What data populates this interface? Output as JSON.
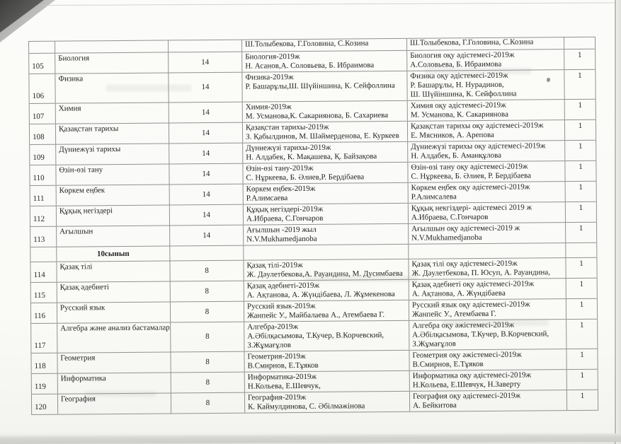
{
  "document": {
    "section_label": "10сынып",
    "table": {
      "rows": [
        {
          "type": "carry",
          "textbook": [
            "Ш.Толыбекова, Г.Головина, С.Козина"
          ],
          "method": [
            "Ш.Толыбекова, Г.Головина, С.Козина"
          ],
          "copies": ""
        },
        {
          "type": "data",
          "num": "105",
          "subject": "Биология",
          "hours": "14",
          "textbook": [
            "Биология-2019ж",
            "Н. Асанов,А. Соловьева, Б. Ибраимова"
          ],
          "method": [
            "Биология оқу әдістемесі-2019ж",
            "А.Соловьева, Б. Ибраимова"
          ],
          "copies": "1"
        },
        {
          "type": "data",
          "num": "106",
          "subject": "Физика",
          "hours": "14",
          "textbook": [
            "Физика-2019ж",
            "Р. Башарұлы,Ш. Шүйіншина, К. Сейфоллина"
          ],
          "method": [
            "Физика оқу әдістемесі-2019ж",
            "Р. Башарұлы, Н. Нурадинов,",
            "Ш. Шүйіншина, К. Сейфоллина"
          ],
          "copies": "1"
        },
        {
          "type": "data",
          "num": "107",
          "subject": "Химия",
          "hours": "14",
          "textbook": [
            "Химия-2019ж",
            "М. Усманова,К. Сакариянова, Б. Сахариева"
          ],
          "method": [
            "Химия оқу әдістемесі-2019ж",
            "М. Усманова, К. Сакариянова"
          ],
          "copies": "1"
        },
        {
          "type": "data",
          "num": "108",
          "subject": "Қазақстан тарихы",
          "hours": "14",
          "textbook": [
            "Қазақстан тарихы-2019ж",
            "З. Қабылдинов, М. Шәймерденова, Е. Куркеев"
          ],
          "method": [
            "Қазақстан тарихы оқу әдістемесі-2019ж",
            "Е. Мясников, А. Арепова"
          ],
          "copies": "1"
        },
        {
          "type": "data",
          "num": "109",
          "subject": "Дүниежүзі тарихы",
          "hours": "14",
          "textbook": [
            "Дүниежүзі тарихы-2019ж",
            "Н. Алдабек, К. Мақашева, Қ. Байзақова"
          ],
          "method": [
            "Дүниежүзі тарихы оқу әдістемесі-2019ж",
            "Н. Алдабек, Б. Аманқұлова"
          ],
          "copies": "1"
        },
        {
          "type": "data",
          "num": "110",
          "subject": "Өзін-өзі тану",
          "hours": "14",
          "textbook": [
            "Өзін-өзі тану-2019ж",
            "С. Нұркеева, Б. Әлиев,Р. Бердібаева"
          ],
          "method": [
            "Өзін-өзі тану оқу әдістемесі-2019ж",
            "С. Нұркеева, Б. Әлиев, Р. Бердібаева"
          ],
          "copies": "1"
        },
        {
          "type": "data",
          "num": "111",
          "subject": "Көркем еңбек",
          "hours": "14",
          "textbook": [
            "Көркем еңбек-2019ж",
            "Р.Алимсаева"
          ],
          "method": [
            "Көркем еңбек оқу әдістемесі-2019ж",
            "Р.Алимсалева"
          ],
          "copies": "1"
        },
        {
          "type": "data",
          "num": "112",
          "subject": "Құқық  негіздері",
          "hours": "14",
          "textbook": [
            "Құқық негіздері-2019ж",
            "А.Ибраева, С.Гончаров"
          ],
          "method": [
            "Құқық некгіздері- әдістемесі 2019 ж",
            "А.Ибраева, С.Гончаров"
          ],
          "copies": "1"
        },
        {
          "type": "data",
          "num": "113",
          "subject": "Ағылшын",
          "hours": "14",
          "textbook": [
            "Ағылшын -2019 жыл",
            "N.V.Mukhamedjanoba"
          ],
          "method": [
            "Ағылшын оқу әдістемесі-2019 ж",
            "N.V.Mukhamedjanoba"
          ],
          "copies": "1"
        },
        {
          "type": "section",
          "section": "10сынып"
        },
        {
          "type": "data",
          "num": "114",
          "subject": "Қазақ тілі",
          "hours": "8",
          "textbook": [
            "Қазақ тілі-2019ж",
            "Ж. Дәулетбекова,А. Рауандина, М. Дусимбаева"
          ],
          "method": [
            "Қазақ тілі оқу әдістемесі-2019ж",
            "Ж. Дәулетбекова, П. Юсуп, А. Рауандина,"
          ],
          "copies": "1"
        },
        {
          "type": "data",
          "num": "115",
          "subject": "Қазақ әдебиеті",
          "hours": "8",
          "textbook": [
            "Қазақ әдебиеті-2019ж",
            "А. Ақтанова, А. Жүндібаева,  Л. Жұмекенова"
          ],
          "method": [
            "Қазақ әдебиеті оқу әдістемесі-2019ж",
            "А. Ақтанова, А. Жүндібаева"
          ],
          "copies": "1"
        },
        {
          "type": "data",
          "num": "116",
          "subject": "Русский язык",
          "hours": "8",
          "textbook": [
            "Русский язык-2019ж",
            "Жанпейс У., Майбалаева А., Атембаева Г."
          ],
          "method": [
            "Русский язык оқу әдістемесі-2019ж",
            "Жанпейс У., Атембаева Г."
          ],
          "copies": "1"
        },
        {
          "type": "data",
          "num": "117",
          "subject": "Алгебра және анализ бастамалары",
          "hours": "8",
          "textbook": [
            "Алгебра-2019ж",
            "А.Әбілқасымова, Т.Кучер, В.Корчевский,",
            "З.Жұмағұлов"
          ],
          "method": [
            "Алгебра оқу әжістемесі-2019ж",
            "А.Әбілқасымова, Т.Кучер, В.Корчевский,",
            "З.Жұмағұлов"
          ],
          "copies": "1"
        },
        {
          "type": "data",
          "num": "118",
          "subject": "Геометрия",
          "hours": "8",
          "textbook": [
            "Геометрия-2019ж",
            "В.Смирнов, Е.Тұяков"
          ],
          "method": [
            "Геометрия оқу әжістемесі-2019ж",
            "В.Смирнов, Е.Тұяков"
          ],
          "copies": "1"
        },
        {
          "type": "data",
          "num": "119",
          "subject": "Информатика",
          "hours": "8",
          "textbook": [
            "Информатика-2019ж",
            "Н.Кольева, Е.Шевчук,"
          ],
          "method": [
            "Информатика оқу әдістемесі-2019ж",
            "Н.Кольева, Е.Шевчук, Н.Заверту"
          ],
          "copies": "1"
        },
        {
          "type": "data",
          "num": "120",
          "subject": "География",
          "hours": "8",
          "textbook": [
            "География-2019ж",
            "К. Каймулдинова, С. Әбілмәжінова"
          ],
          "method": [
            "География оқу әдістемесі-2019ж",
            "А. Бейкитова"
          ],
          "copies": "1"
        }
      ]
    }
  }
}
